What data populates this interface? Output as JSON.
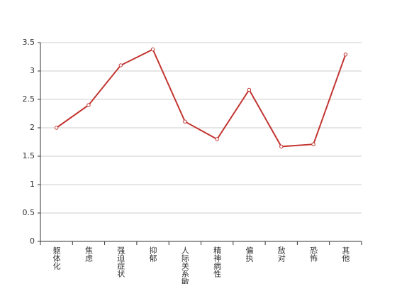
{
  "chart_data": {
    "type": "line",
    "categories": [
      "躯体化",
      "焦虑",
      "强迫症状",
      "抑郁",
      "人际关系敏感",
      "精神病性",
      "偏执",
      "敌对",
      "恐怖",
      "其他"
    ],
    "values": [
      2.0,
      2.4,
      3.1,
      3.38,
      2.11,
      1.8,
      2.67,
      1.67,
      1.71,
      3.29
    ],
    "color": "#c23531",
    "ylim": [
      0,
      3.5
    ],
    "yticks": [
      0,
      0.5,
      1,
      1.5,
      2,
      2.5,
      3,
      3.5
    ],
    "grid": true
  }
}
